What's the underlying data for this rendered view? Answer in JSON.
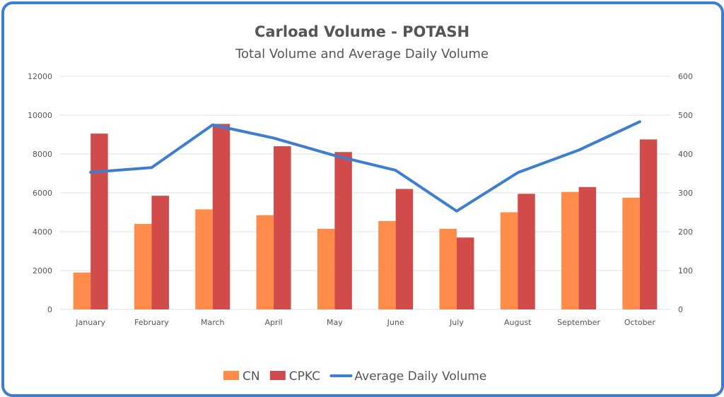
{
  "chart_data": {
    "type": "bar",
    "title": "Carload Volume - POTASH",
    "subtitle": "Total Volume and Average Daily Volume",
    "categories": [
      "January",
      "February",
      "March",
      "April",
      "May",
      "June",
      "July",
      "August",
      "September",
      "October"
    ],
    "series": [
      {
        "name": "CN",
        "type": "bar",
        "axis": "left",
        "color": "#ff8c4a",
        "values": [
          1900,
          4400,
          5150,
          4850,
          4150,
          4550,
          4150,
          5000,
          6050,
          5750
        ]
      },
      {
        "name": "CPKC",
        "type": "bar",
        "axis": "left",
        "color": "#d14b4b",
        "values": [
          9050,
          5850,
          9550,
          8400,
          8100,
          6200,
          3700,
          5950,
          6300,
          8750
        ]
      },
      {
        "name": "Average Daily Volume",
        "type": "line",
        "axis": "right",
        "color": "#3f7dd0",
        "values": [
          353,
          365,
          475,
          441,
          396,
          358,
          253,
          352,
          410,
          483
        ]
      }
    ],
    "ylim_left": [
      0,
      12000
    ],
    "yticks_left": [
      "0",
      "2000",
      "4000",
      "6000",
      "8000",
      "10000",
      "12000"
    ],
    "ylim_right": [
      0,
      600
    ],
    "yticks_right": [
      "0",
      "100",
      "200",
      "300",
      "400",
      "500",
      "600"
    ],
    "grid": true,
    "legend_position": "bottom"
  }
}
